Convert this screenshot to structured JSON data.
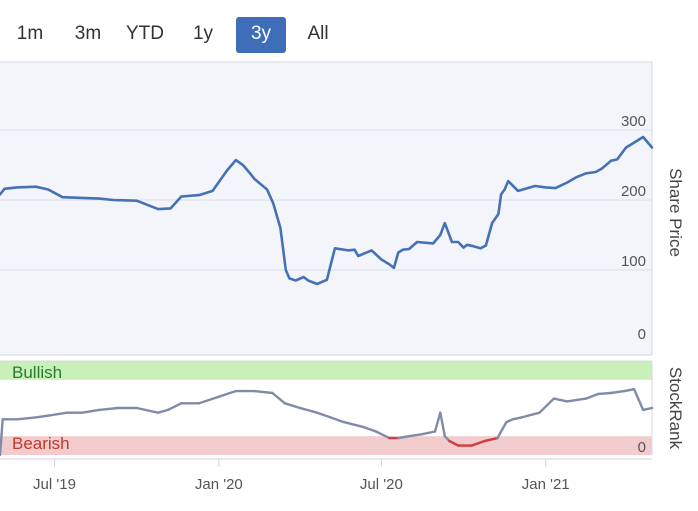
{
  "range_selector": {
    "buttons": [
      {
        "label": "1m",
        "active": false
      },
      {
        "label": "3m",
        "active": false
      },
      {
        "label": "YTD",
        "active": false
      },
      {
        "label": "1y",
        "active": false
      },
      {
        "label": "3y",
        "active": true
      },
      {
        "label": "All",
        "active": false
      }
    ]
  },
  "colors": {
    "accent": "#3f6eb8",
    "price_line": "#4472b4",
    "rank_line": "#7f8ca8",
    "bearish_line": "#d33b3b",
    "bullish_band": "#c8f0b8",
    "bearish_band": "#f2cccc",
    "plot_background": "#f4f5fa"
  },
  "chart_data": [
    {
      "type": "line",
      "title": "",
      "ylabel": "Share Price",
      "ylim": [
        0,
        350
      ],
      "yticks": [
        "0",
        "100",
        "200",
        "300"
      ],
      "x_axis": {
        "range": [
          "2019-05-01",
          "2021-04-30"
        ],
        "tick_labels": [
          "Jul '19",
          "Jan '20",
          "Jul '20",
          "Jan '21"
        ],
        "tick_dates": [
          "2019-07-01",
          "2020-01-01",
          "2020-07-01",
          "2021-01-01"
        ]
      },
      "series": [
        {
          "x": [
            "2019-05-01",
            "2019-05-06",
            "2019-05-20",
            "2019-06-10",
            "2019-06-24",
            "2019-07-10",
            "2019-08-01",
            "2019-08-20",
            "2019-09-05",
            "2019-10-01",
            "2019-10-25",
            "2019-11-08",
            "2019-11-20",
            "2019-12-10",
            "2019-12-25",
            "2020-01-10",
            "2020-01-20",
            "2020-01-28",
            "2020-02-05",
            "2020-02-10",
            "2020-02-24",
            "2020-03-02",
            "2020-03-10",
            "2020-03-16",
            "2020-03-20",
            "2020-03-27",
            "2020-04-05",
            "2020-04-10",
            "2020-04-20",
            "2020-05-01",
            "2020-05-10",
            "2020-05-25",
            "2020-06-01",
            "2020-06-05",
            "2020-06-20",
            "2020-07-01",
            "2020-07-10",
            "2020-07-15",
            "2020-07-20",
            "2020-07-25",
            "2020-08-01",
            "2020-08-10",
            "2020-08-28",
            "2020-09-05",
            "2020-09-10",
            "2020-09-18",
            "2020-09-25",
            "2020-10-01",
            "2020-10-05",
            "2020-10-12",
            "2020-10-20",
            "2020-10-26",
            "2020-11-02",
            "2020-11-09",
            "2020-11-12",
            "2020-11-16",
            "2020-11-20",
            "2020-12-01",
            "2020-12-20",
            "2021-01-01",
            "2021-01-12",
            "2021-01-25",
            "2021-02-05",
            "2021-02-15",
            "2021-02-26",
            "2021-03-05",
            "2021-03-15",
            "2021-03-22",
            "2021-03-25",
            "2021-04-01",
            "2021-04-10",
            "2021-04-20",
            "2021-04-30"
          ],
          "values": [
            208,
            216,
            218,
            219,
            215,
            204,
            203,
            202,
            200,
            199,
            187,
            188,
            205,
            207,
            213,
            242,
            257,
            250,
            238,
            230,
            215,
            195,
            160,
            100,
            88,
            85,
            90,
            85,
            80,
            86,
            131,
            128,
            129,
            120,
            128,
            115,
            108,
            103,
            125,
            129,
            130,
            140,
            138,
            150,
            167,
            140,
            140,
            132,
            136,
            134,
            131,
            135,
            167,
            180,
            208,
            215,
            227,
            213,
            220,
            218,
            217,
            225,
            233,
            238,
            240,
            245,
            256,
            258,
            263,
            275,
            282,
            290,
            275
          ]
        }
      ]
    },
    {
      "type": "line",
      "title": "",
      "ylabel": "StockRank",
      "yticks": [
        "0"
      ],
      "ylim": [
        0,
        100
      ],
      "bands": [
        {
          "label": "Bullish",
          "from": 80,
          "to": 100
        },
        {
          "label": "Bearish",
          "from": 0,
          "to": 20
        }
      ],
      "series": [
        {
          "x": [
            "2019-05-01",
            "2019-05-04",
            "2019-05-20",
            "2019-06-10",
            "2019-06-25",
            "2019-07-15",
            "2019-08-01",
            "2019-08-20",
            "2019-09-10",
            "2019-10-01",
            "2019-10-25",
            "2019-11-05",
            "2019-11-20",
            "2019-12-10",
            "2020-01-01",
            "2020-01-20",
            "2020-02-10",
            "2020-03-01",
            "2020-03-15",
            "2020-04-01",
            "2020-04-20",
            "2020-05-05",
            "2020-05-20",
            "2020-06-10",
            "2020-06-25",
            "2020-07-10",
            "2020-07-20",
            "2020-08-01",
            "2020-08-15",
            "2020-08-30",
            "2020-09-05",
            "2020-09-10",
            "2020-09-15",
            "2020-09-25",
            "2020-10-10",
            "2020-10-25",
            "2020-11-08",
            "2020-11-12",
            "2020-11-18",
            "2020-11-25",
            "2020-12-05",
            "2020-12-25",
            "2021-01-10",
            "2021-01-25",
            "2021-02-15",
            "2021-03-01",
            "2021-03-15",
            "2021-03-30",
            "2021-04-10",
            "2021-04-20",
            "2021-04-30"
          ],
          "values": [
            0,
            38,
            38,
            40,
            42,
            45,
            45,
            48,
            50,
            50,
            45,
            48,
            55,
            55,
            62,
            68,
            68,
            66,
            55,
            50,
            45,
            40,
            35,
            30,
            25,
            18,
            18,
            20,
            22,
            25,
            45,
            20,
            15,
            10,
            10,
            15,
            18,
            25,
            35,
            38,
            40,
            45,
            60,
            57,
            60,
            65,
            66,
            68,
            70,
            48,
            50
          ]
        }
      ]
    }
  ]
}
